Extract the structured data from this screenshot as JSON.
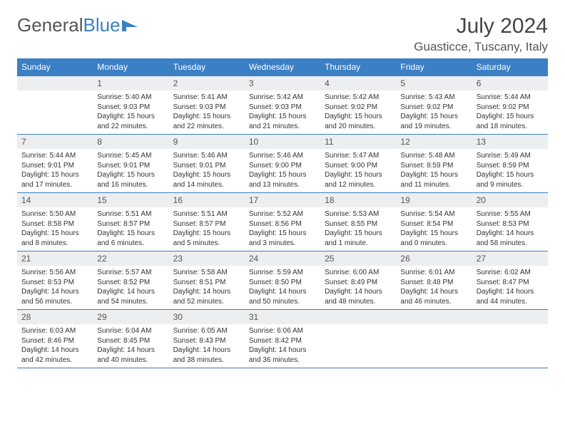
{
  "brand": {
    "part1": "General",
    "part2": "Blue"
  },
  "title": "July 2024",
  "location": "Guasticce, Tuscany, Italy",
  "colors": {
    "header_bg": "#3b7fc4",
    "daynum_bg": "#eceeef",
    "border": "#3b7fc4",
    "text": "#333333",
    "page_bg": "#ffffff"
  },
  "weekdays": [
    "Sunday",
    "Monday",
    "Tuesday",
    "Wednesday",
    "Thursday",
    "Friday",
    "Saturday"
  ],
  "weeks": [
    [
      null,
      {
        "n": "1",
        "sr": "Sunrise: 5:40 AM",
        "ss": "Sunset: 9:03 PM",
        "dl1": "Daylight: 15 hours",
        "dl2": "and 22 minutes."
      },
      {
        "n": "2",
        "sr": "Sunrise: 5:41 AM",
        "ss": "Sunset: 9:03 PM",
        "dl1": "Daylight: 15 hours",
        "dl2": "and 22 minutes."
      },
      {
        "n": "3",
        "sr": "Sunrise: 5:42 AM",
        "ss": "Sunset: 9:03 PM",
        "dl1": "Daylight: 15 hours",
        "dl2": "and 21 minutes."
      },
      {
        "n": "4",
        "sr": "Sunrise: 5:42 AM",
        "ss": "Sunset: 9:02 PM",
        "dl1": "Daylight: 15 hours",
        "dl2": "and 20 minutes."
      },
      {
        "n": "5",
        "sr": "Sunrise: 5:43 AM",
        "ss": "Sunset: 9:02 PM",
        "dl1": "Daylight: 15 hours",
        "dl2": "and 19 minutes."
      },
      {
        "n": "6",
        "sr": "Sunrise: 5:44 AM",
        "ss": "Sunset: 9:02 PM",
        "dl1": "Daylight: 15 hours",
        "dl2": "and 18 minutes."
      }
    ],
    [
      {
        "n": "7",
        "sr": "Sunrise: 5:44 AM",
        "ss": "Sunset: 9:01 PM",
        "dl1": "Daylight: 15 hours",
        "dl2": "and 17 minutes."
      },
      {
        "n": "8",
        "sr": "Sunrise: 5:45 AM",
        "ss": "Sunset: 9:01 PM",
        "dl1": "Daylight: 15 hours",
        "dl2": "and 16 minutes."
      },
      {
        "n": "9",
        "sr": "Sunrise: 5:46 AM",
        "ss": "Sunset: 9:01 PM",
        "dl1": "Daylight: 15 hours",
        "dl2": "and 14 minutes."
      },
      {
        "n": "10",
        "sr": "Sunrise: 5:46 AM",
        "ss": "Sunset: 9:00 PM",
        "dl1": "Daylight: 15 hours",
        "dl2": "and 13 minutes."
      },
      {
        "n": "11",
        "sr": "Sunrise: 5:47 AM",
        "ss": "Sunset: 9:00 PM",
        "dl1": "Daylight: 15 hours",
        "dl2": "and 12 minutes."
      },
      {
        "n": "12",
        "sr": "Sunrise: 5:48 AM",
        "ss": "Sunset: 8:59 PM",
        "dl1": "Daylight: 15 hours",
        "dl2": "and 11 minutes."
      },
      {
        "n": "13",
        "sr": "Sunrise: 5:49 AM",
        "ss": "Sunset: 8:59 PM",
        "dl1": "Daylight: 15 hours",
        "dl2": "and 9 minutes."
      }
    ],
    [
      {
        "n": "14",
        "sr": "Sunrise: 5:50 AM",
        "ss": "Sunset: 8:58 PM",
        "dl1": "Daylight: 15 hours",
        "dl2": "and 8 minutes."
      },
      {
        "n": "15",
        "sr": "Sunrise: 5:51 AM",
        "ss": "Sunset: 8:57 PM",
        "dl1": "Daylight: 15 hours",
        "dl2": "and 6 minutes."
      },
      {
        "n": "16",
        "sr": "Sunrise: 5:51 AM",
        "ss": "Sunset: 8:57 PM",
        "dl1": "Daylight: 15 hours",
        "dl2": "and 5 minutes."
      },
      {
        "n": "17",
        "sr": "Sunrise: 5:52 AM",
        "ss": "Sunset: 8:56 PM",
        "dl1": "Daylight: 15 hours",
        "dl2": "and 3 minutes."
      },
      {
        "n": "18",
        "sr": "Sunrise: 5:53 AM",
        "ss": "Sunset: 8:55 PM",
        "dl1": "Daylight: 15 hours",
        "dl2": "and 1 minute."
      },
      {
        "n": "19",
        "sr": "Sunrise: 5:54 AM",
        "ss": "Sunset: 8:54 PM",
        "dl1": "Daylight: 15 hours",
        "dl2": "and 0 minutes."
      },
      {
        "n": "20",
        "sr": "Sunrise: 5:55 AM",
        "ss": "Sunset: 8:53 PM",
        "dl1": "Daylight: 14 hours",
        "dl2": "and 58 minutes."
      }
    ],
    [
      {
        "n": "21",
        "sr": "Sunrise: 5:56 AM",
        "ss": "Sunset: 8:53 PM",
        "dl1": "Daylight: 14 hours",
        "dl2": "and 56 minutes."
      },
      {
        "n": "22",
        "sr": "Sunrise: 5:57 AM",
        "ss": "Sunset: 8:52 PM",
        "dl1": "Daylight: 14 hours",
        "dl2": "and 54 minutes."
      },
      {
        "n": "23",
        "sr": "Sunrise: 5:58 AM",
        "ss": "Sunset: 8:51 PM",
        "dl1": "Daylight: 14 hours",
        "dl2": "and 52 minutes."
      },
      {
        "n": "24",
        "sr": "Sunrise: 5:59 AM",
        "ss": "Sunset: 8:50 PM",
        "dl1": "Daylight: 14 hours",
        "dl2": "and 50 minutes."
      },
      {
        "n": "25",
        "sr": "Sunrise: 6:00 AM",
        "ss": "Sunset: 8:49 PM",
        "dl1": "Daylight: 14 hours",
        "dl2": "and 48 minutes."
      },
      {
        "n": "26",
        "sr": "Sunrise: 6:01 AM",
        "ss": "Sunset: 8:48 PM",
        "dl1": "Daylight: 14 hours",
        "dl2": "and 46 minutes."
      },
      {
        "n": "27",
        "sr": "Sunrise: 6:02 AM",
        "ss": "Sunset: 8:47 PM",
        "dl1": "Daylight: 14 hours",
        "dl2": "and 44 minutes."
      }
    ],
    [
      {
        "n": "28",
        "sr": "Sunrise: 6:03 AM",
        "ss": "Sunset: 8:46 PM",
        "dl1": "Daylight: 14 hours",
        "dl2": "and 42 minutes."
      },
      {
        "n": "29",
        "sr": "Sunrise: 6:04 AM",
        "ss": "Sunset: 8:45 PM",
        "dl1": "Daylight: 14 hours",
        "dl2": "and 40 minutes."
      },
      {
        "n": "30",
        "sr": "Sunrise: 6:05 AM",
        "ss": "Sunset: 8:43 PM",
        "dl1": "Daylight: 14 hours",
        "dl2": "and 38 minutes."
      },
      {
        "n": "31",
        "sr": "Sunrise: 6:06 AM",
        "ss": "Sunset: 8:42 PM",
        "dl1": "Daylight: 14 hours",
        "dl2": "and 36 minutes."
      },
      null,
      null,
      null
    ]
  ]
}
